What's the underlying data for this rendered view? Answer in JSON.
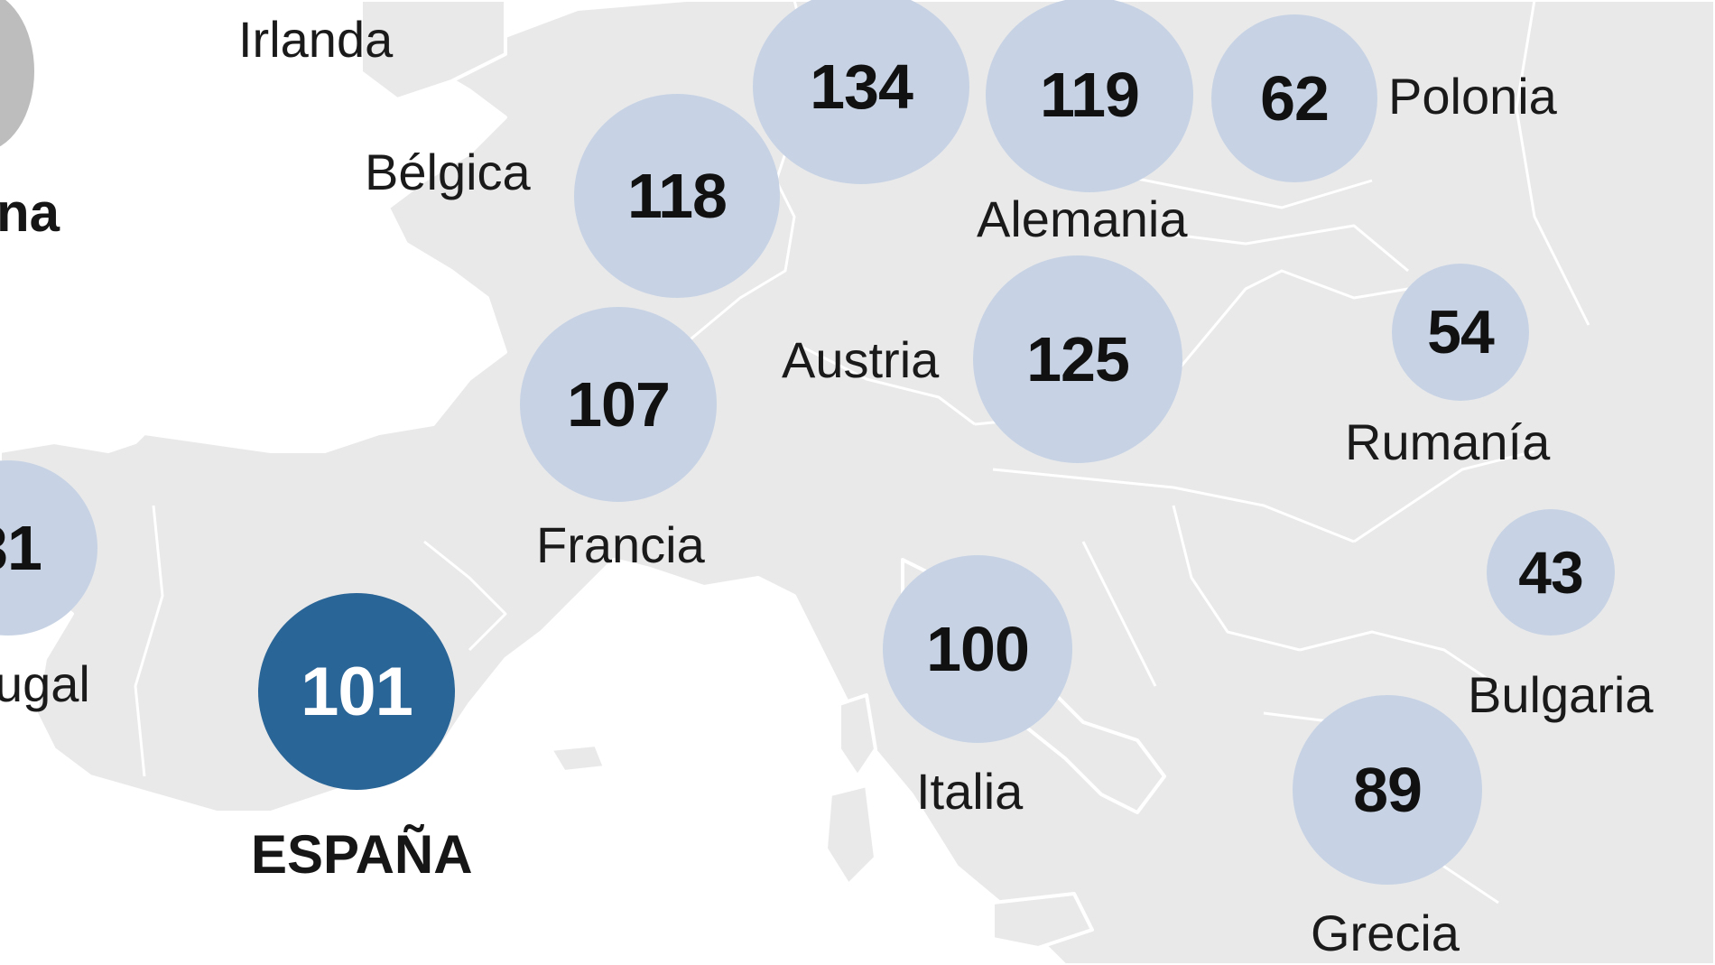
{
  "colors": {
    "background": "#ffffff",
    "land": "#e9e9ea",
    "border": "#ffffff",
    "bubble": "#c7d3e4",
    "bubble_highlight": "#2a6597",
    "bubble_partial": "#bdbdbd",
    "text": "#1a1a1a"
  },
  "countries": [
    {
      "name": "Irlanda",
      "value": null
    },
    {
      "name": "",
      "value": 134
    },
    {
      "name": "Alemania",
      "value": 119
    },
    {
      "name": "Polonia",
      "value": 62
    },
    {
      "name": "Bélgica",
      "value": 118
    },
    {
      "name": "Austria",
      "value": 125
    },
    {
      "name": "Francia",
      "value": 107
    },
    {
      "name": "Rumanía",
      "value": 54
    },
    {
      "name": "Bulgaria",
      "value": 43
    },
    {
      "name": "Italia",
      "value": 100
    },
    {
      "name": "ESPAÑA",
      "value": 101
    },
    {
      "name": "Grecia",
      "value": 89
    },
    {
      "name": "ugal",
      "value": "31"
    }
  ],
  "edge_fragments": {
    "left_label": "na"
  }
}
